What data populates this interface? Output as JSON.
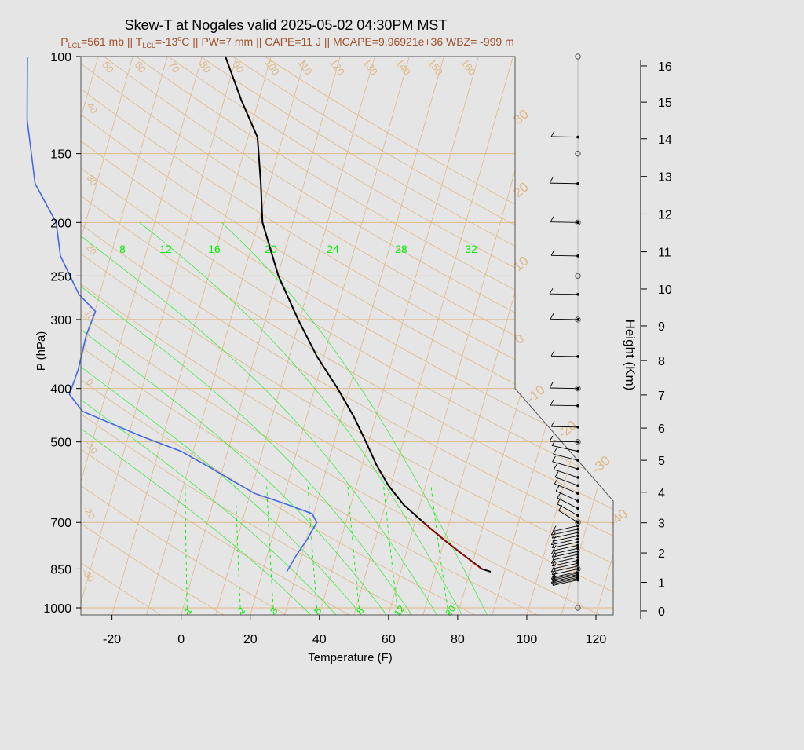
{
  "title": "Skew-T at Nogales valid 2025-05-02 04:30PM MST",
  "subtitle_parts": [
    {
      "t": "P",
      "sub": false
    },
    {
      "t": "LCL",
      "sub": true
    },
    {
      "t": "=561 mb || T",
      "sub": false
    },
    {
      "t": "LCL",
      "sub": true
    },
    {
      "t": "=-13",
      "sub": false
    },
    {
      "t": "o",
      "sup": true
    },
    {
      "t": "C || PW=7 mm || CAPE=11 J || MCAPE=9.96921e+36 WBZ= -999 m",
      "sub": false
    }
  ],
  "colors": {
    "subtitle": "#a0522d",
    "isotherm": "#deb887",
    "mixing_ratio": "#00ee00",
    "temperature": "#000000",
    "dewpoint": "#4169e1",
    "parcel": "#cc0000"
  },
  "chart_data": {
    "type": "skew-t",
    "xlabel": "Temperature (F)",
    "ylabel": "P (hPa)",
    "y2label": "Height (Km)",
    "x_ticks": [
      "-20",
      "0",
      "20",
      "40",
      "60",
      "80",
      "100",
      "120"
    ],
    "x_tick_values": [
      -20,
      0,
      20,
      40,
      60,
      80,
      100,
      120
    ],
    "xlim": [
      -29,
      125
    ],
    "ylim": [
      1030,
      100
    ],
    "y_scale": "log",
    "p_ticks": [
      100,
      150,
      200,
      250,
      300,
      400,
      500,
      700,
      850,
      1000
    ],
    "height_ticks": [
      0,
      1,
      2,
      3,
      4,
      5,
      6,
      7,
      8,
      9,
      10,
      11,
      12,
      13,
      14,
      15,
      16
    ],
    "height_tick_pressures": [
      1013,
      899,
      795,
      701,
      617,
      540,
      472,
      411,
      356,
      308,
      264,
      226,
      193,
      165,
      141,
      121,
      104
    ],
    "isotherm_labels_top": [
      "50",
      "60",
      "70",
      "80",
      "90",
      "100",
      "110",
      "120",
      "130",
      "140",
      "150",
      "160"
    ],
    "isotherm_labels_right": [
      "30",
      "20",
      "10",
      "0",
      "-10",
      "-20",
      "-30",
      "-40"
    ],
    "isotherm_labels_left": [
      "40",
      "30",
      "20",
      "10",
      "0",
      "-10",
      "-20",
      "-30"
    ],
    "mixing_ratio_top_labels": [
      "8",
      "12",
      "16",
      "20",
      "24",
      "28",
      "32"
    ],
    "mixing_ratio_bottom_labels": [
      "1",
      "2",
      "3",
      "5",
      "8",
      "12",
      "20"
    ],
    "temperature_profile": [
      {
        "p": 860,
        "t": 86.0
      },
      {
        "p": 850,
        "t": 83.2
      },
      {
        "p": 800,
        "t": 76.5
      },
      {
        "p": 750,
        "t": 69.5
      },
      {
        "p": 700,
        "t": 62.5
      },
      {
        "p": 650,
        "t": 55.3
      },
      {
        "p": 600,
        "t": 49.3
      },
      {
        "p": 550,
        "t": 44.1
      },
      {
        "p": 500,
        "t": 39.2
      },
      {
        "p": 450,
        "t": 33.6
      },
      {
        "p": 400,
        "t": 26.6
      },
      {
        "p": 350,
        "t": 18.0
      },
      {
        "p": 300,
        "t": 9.5
      },
      {
        "p": 250,
        "t": 0.2
      },
      {
        "p": 200,
        "t": -8.8
      },
      {
        "p": 170,
        "t": -12.5
      },
      {
        "p": 140,
        "t": -17.3
      },
      {
        "p": 120,
        "t": -25.0
      },
      {
        "p": 100,
        "t": -33.2
      }
    ],
    "dewpoint_profile": [
      {
        "p": 860,
        "t": 27.0
      },
      {
        "p": 800,
        "t": 28.5
      },
      {
        "p": 750,
        "t": 30.3
      },
      {
        "p": 700,
        "t": 31.6
      },
      {
        "p": 675,
        "t": 29.6
      },
      {
        "p": 650,
        "t": 21.8
      },
      {
        "p": 620,
        "t": 11.2
      },
      {
        "p": 590,
        "t": 4.2
      },
      {
        "p": 560,
        "t": -2.9
      },
      {
        "p": 520,
        "t": -13.5
      },
      {
        "p": 490,
        "t": -25.6
      },
      {
        "p": 440,
        "t": -45.3
      },
      {
        "p": 410,
        "t": -50.5
      },
      {
        "p": 370,
        "t": -50.0
      },
      {
        "p": 320,
        "t": -50.5
      },
      {
        "p": 290,
        "t": -49.8
      },
      {
        "p": 270,
        "t": -56.0
      },
      {
        "p": 230,
        "t": -64.5
      },
      {
        "p": 200,
        "t": -68.5
      },
      {
        "p": 170,
        "t": -77.8
      },
      {
        "p": 130,
        "t": -85.4
      },
      {
        "p": 100,
        "t": -90.5
      }
    ],
    "parcel_profile": [
      {
        "p": 850,
        "t": 83.0
      },
      {
        "p": 800,
        "t": 76.5
      },
      {
        "p": 750,
        "t": 69.5
      },
      {
        "p": 700,
        "t": 62.5
      }
    ],
    "wind_barb_pressures": [
      890,
      885,
      880,
      875,
      870,
      865,
      860,
      850,
      840,
      830,
      820,
      810,
      800,
      790,
      780,
      770,
      760,
      750,
      740,
      730,
      720,
      710,
      700,
      680,
      660,
      640,
      620,
      600,
      580,
      560,
      540,
      520,
      500,
      470,
      430,
      400,
      350,
      300,
      270,
      230,
      200,
      170,
      140
    ]
  }
}
